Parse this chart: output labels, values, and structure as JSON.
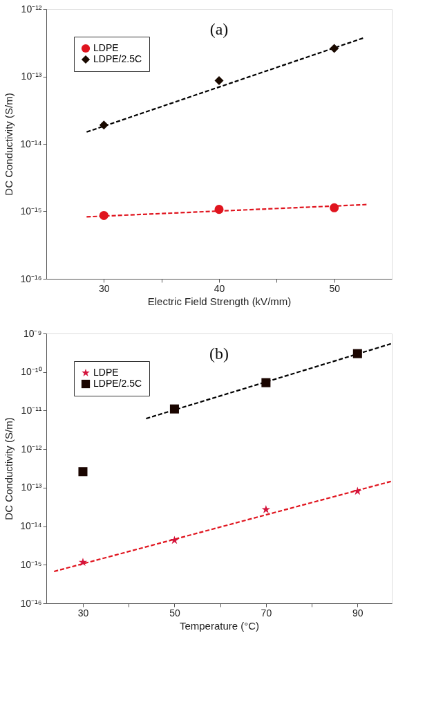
{
  "chart_data": [
    {
      "type": "scatter",
      "xlabel": "Electric Field Strength (kV/mm)",
      "ylabel": "DC Conductivity (S/m)",
      "annotations": [
        "(a)"
      ],
      "log": "y",
      "legend": "top left",
      "grid": false,
      "xlim": [
        25,
        55
      ],
      "xticks": [
        30,
        {
          "value": 35,
          "label": null
        },
        40,
        {
          "value": 45,
          "label": null
        },
        50
      ],
      "ylim": [
        1e-16,
        1e-12
      ],
      "yticks": [
        {
          "value": 1e-16,
          "label": "10⁻¹⁶"
        },
        {
          "value": 1e-15,
          "label": "10⁻¹⁵"
        },
        {
          "value": 1e-14,
          "label": "10⁻¹⁴"
        },
        {
          "value": 1e-13,
          "label": "10⁻¹³"
        },
        {
          "value": 1e-12,
          "label": "10⁻¹²"
        }
      ],
      "series": [
        {
          "name": "LDPE",
          "color": "#e0141e",
          "marker": "circle",
          "x": [
            30,
            40,
            50
          ],
          "values": [
            8.7e-16,
            1.07e-15,
            1.13e-15
          ]
        },
        {
          "name": "LDPE/2.5C",
          "color": "#1a0a00",
          "marker": "diamond",
          "x": [
            30,
            40,
            50
          ],
          "values": [
            1.9e-14,
            8.7e-14,
            2.6e-13
          ]
        },
        {
          "type": "line",
          "color": "#e0141e",
          "line_style": "dashed",
          "x": [
            28.5,
            52.8
          ],
          "values": [
            8.3e-16,
            1.26e-15
          ]
        },
        {
          "type": "line",
          "color": "#000000",
          "line_style": "dashed",
          "x": [
            28.5,
            52.5
          ],
          "values": [
            1.5e-14,
            3.7e-13
          ]
        }
      ]
    },
    {
      "type": "scatter",
      "xlabel": "Temperature (°C)",
      "ylabel": "DC Conductivity (S/m)",
      "annotations": [
        "(b)"
      ],
      "log": "y",
      "legend": "top left",
      "grid": false,
      "xlim": [
        22,
        97.5
      ],
      "xticks": [
        30,
        {
          "value": 40,
          "label": null
        },
        50,
        {
          "value": 60,
          "label": null
        },
        70,
        {
          "value": 80,
          "label": null
        },
        90
      ],
      "ylim": [
        1e-16,
        1e-09
      ],
      "yticks": [
        {
          "value": 1e-16,
          "label": "10⁻¹⁶"
        },
        {
          "value": 1e-15,
          "label": "10⁻¹⁵"
        },
        {
          "value": 1e-14,
          "label": "10⁻¹⁴"
        },
        {
          "value": 1e-13,
          "label": "10⁻¹³"
        },
        {
          "value": 1e-12,
          "label": "10⁻¹²"
        },
        {
          "value": 1e-11,
          "label": "10⁻¹¹"
        },
        {
          "value": 1e-10,
          "label": "10⁻¹⁰"
        },
        {
          "value": 1e-09,
          "label": "10⁻⁹"
        }
      ],
      "series": [
        {
          "name": "LDPE",
          "color": "#d4143c",
          "marker": "star",
          "x": [
            30,
            50,
            70,
            90
          ],
          "values": [
            1.16e-15,
            4.3e-15,
            2.7e-14,
            8.1e-14
          ]
        },
        {
          "name": "LDPE/2.5C",
          "color": "#1a0500",
          "marker": "square",
          "x": [
            30,
            50,
            70,
            90
          ],
          "values": [
            2.6e-13,
            1.1e-11,
            5.3e-11,
            3e-10
          ]
        },
        {
          "type": "line",
          "color": "#e0141e",
          "line_style": "dashed",
          "x": [
            23.7,
            97.3
          ],
          "values": [
            6.7e-16,
            1.45e-13
          ]
        },
        {
          "type": "line",
          "color": "#000000",
          "line_style": "dashed",
          "x": [
            43.8,
            97.3
          ],
          "values": [
            6.2e-12,
            5.4e-10
          ]
        }
      ]
    }
  ]
}
